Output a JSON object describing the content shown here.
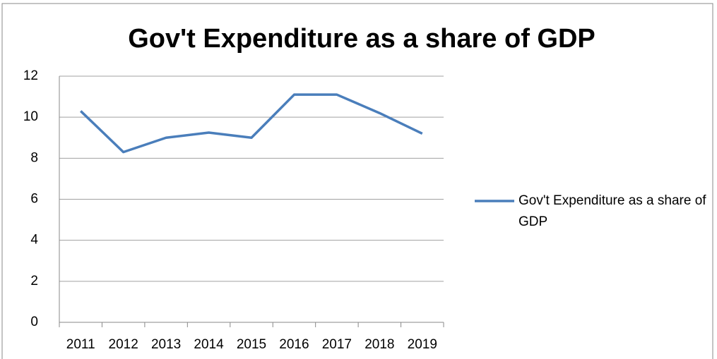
{
  "chart_data": {
    "type": "line",
    "title": "Gov't Expenditure as a share of GDP",
    "categories": [
      "2011",
      "2012",
      "2013",
      "2014",
      "2015",
      "2016",
      "2017",
      "2018",
      "2019"
    ],
    "series": [
      {
        "name": "Gov't Expenditure as a share of GDP",
        "color": "#4a7ebb",
        "values": [
          10.3,
          8.3,
          9.0,
          9.25,
          9.0,
          11.1,
          11.1,
          10.2,
          9.2
        ]
      }
    ],
    "ylim": [
      0,
      12
    ],
    "yticks": [
      0,
      2,
      4,
      6,
      8,
      10,
      12
    ],
    "grid": true,
    "legend": "right"
  }
}
